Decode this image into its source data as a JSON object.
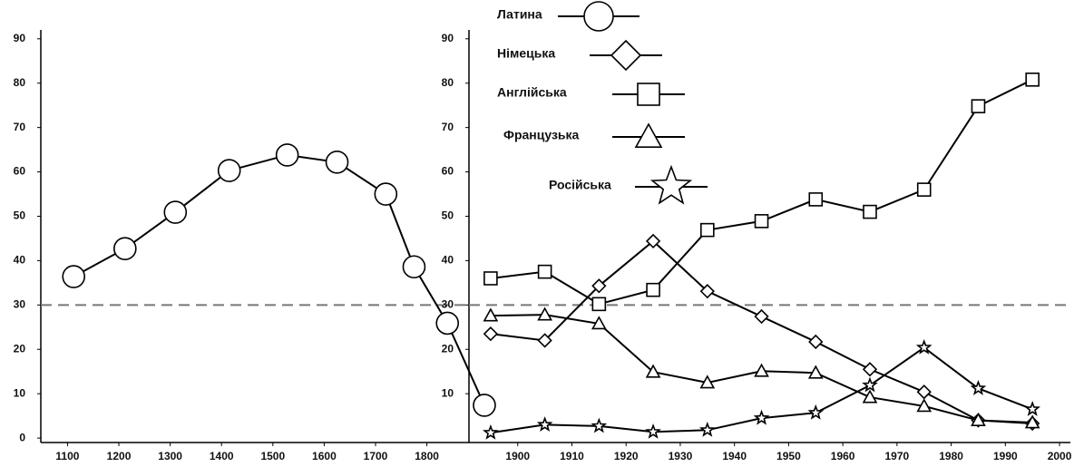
{
  "chart_data": [
    {
      "type": "line",
      "xlim": [
        1048,
        1882
      ],
      "ylim": [
        -1,
        92
      ],
      "xticks": [
        1100,
        1200,
        1300,
        1400,
        1500,
        1600,
        1700,
        1800
      ],
      "yticks": [
        0,
        10,
        20,
        30,
        40,
        50,
        60,
        70,
        80,
        90
      ],
      "reference_line": 30,
      "series": [
        {
          "name": "Латина",
          "color": "#000000",
          "marker": "circle",
          "x": [
            1112,
            1212,
            1310,
            1415,
            1528,
            1625,
            1720,
            1775,
            1840,
            1912
          ],
          "values": [
            36.4,
            42.7,
            50.9,
            60.3,
            63.8,
            62.2,
            55,
            38.6,
            25.9,
            7.4
          ]
        }
      ]
    },
    {
      "type": "line",
      "xlim": [
        1891,
        2002
      ],
      "ylim": [
        -1,
        92
      ],
      "xticks": [
        1900,
        1910,
        1920,
        1930,
        1940,
        1950,
        1960,
        1970,
        1980,
        1990,
        2000
      ],
      "yticks": [
        10,
        20,
        30,
        40,
        50,
        60,
        70,
        80,
        90
      ],
      "reference_line": 30,
      "series": [
        {
          "name": "Німецька",
          "color": "#000000",
          "marker": "diamond",
          "x": [
            1895,
            1905,
            1915,
            1925,
            1935,
            1945,
            1955,
            1965,
            1975,
            1985,
            1995
          ],
          "values": [
            23.5,
            22,
            34.3,
            44.4,
            33.1,
            27.4,
            21.7,
            15.5,
            10.4,
            4,
            3.3
          ]
        },
        {
          "name": "Англійська",
          "color": "#000000",
          "marker": "square",
          "x": [
            1895,
            1905,
            1915,
            1925,
            1935,
            1945,
            1955,
            1965,
            1975,
            1985,
            1995
          ],
          "values": [
            36,
            37.5,
            30.2,
            33.4,
            46.9,
            48.9,
            53.8,
            51,
            56,
            74.8,
            80.8
          ]
        },
        {
          "name": "Французька",
          "color": "#000000",
          "marker": "triangle",
          "x": [
            1895,
            1905,
            1915,
            1925,
            1935,
            1945,
            1955,
            1965,
            1975,
            1985,
            1995
          ],
          "values": [
            27.6,
            27.8,
            25.8,
            14.9,
            12.5,
            15.1,
            14.7,
            9.2,
            7.2,
            4,
            3.5
          ]
        },
        {
          "name": "Російська",
          "color": "#000000",
          "marker": "star",
          "x": [
            1895,
            1905,
            1915,
            1925,
            1935,
            1945,
            1955,
            1965,
            1975,
            1985,
            1995
          ],
          "values": [
            1.2,
            3,
            2.7,
            1.4,
            1.8,
            4.5,
            5.7,
            11.9,
            20.4,
            11.2,
            6.5
          ]
        }
      ]
    }
  ]
}
